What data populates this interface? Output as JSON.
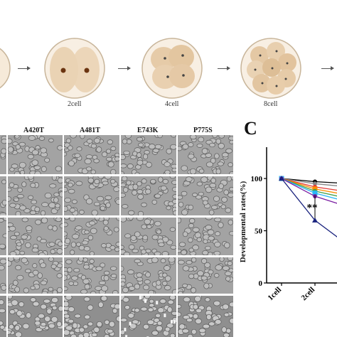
{
  "figure": {
    "panel_letter": "C",
    "stages": [
      "2cell",
      "4cell",
      "8cell"
    ],
    "columns": [
      "A420T",
      "A481T",
      "E743K",
      "P775S"
    ]
  },
  "chart_data": {
    "type": "line",
    "categories": [
      "1cell",
      "2cell"
    ],
    "ylabel": "Developmental rates(%)",
    "y_ticks": [
      0,
      50,
      100
    ],
    "ylim": [
      0,
      130
    ],
    "significance_label": "**",
    "series": [
      {
        "color": "#000000",
        "values": [
          100,
          97
        ],
        "marker": "circle"
      },
      {
        "color": "#888888",
        "values": [
          100,
          95
        ],
        "marker": "circle"
      },
      {
        "color": "#e53935",
        "values": [
          100,
          92
        ],
        "marker": "circle"
      },
      {
        "color": "#fb8c00",
        "values": [
          100,
          90
        ],
        "marker": "square"
      },
      {
        "color": "#43a047",
        "values": [
          100,
          88
        ],
        "marker": "circle"
      },
      {
        "color": "#29b6f6",
        "values": [
          100,
          86
        ],
        "marker": "square"
      },
      {
        "color": "#7b1fa2",
        "values": [
          100,
          83
        ],
        "marker": "circle"
      },
      {
        "color": "#1a237e",
        "values": [
          100,
          60
        ],
        "marker": "triangle"
      }
    ]
  }
}
